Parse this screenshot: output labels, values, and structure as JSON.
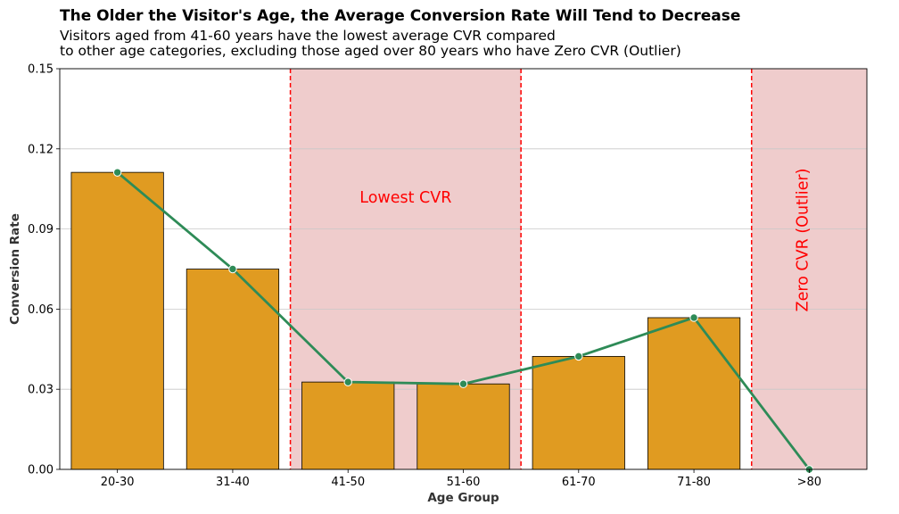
{
  "chart_data": {
    "type": "bar",
    "title": "The Older the Visitor's Age, the Average Conversion Rate Will Tend to Decrease",
    "subtitle_lines": [
      "Visitors aged from 41-60 years have the lowest average CVR compared",
      "to other age categories, excluding those aged over 80 years who have Zero CVR (Outlier)"
    ],
    "xlabel": "Age Group",
    "ylabel": "Conversion Rate",
    "categories": [
      "20-30",
      "31-40",
      "41-50",
      "51-60",
      "61-70",
      "71-80",
      ">80"
    ],
    "values": [
      0.1112,
      0.075,
      0.0327,
      0.032,
      0.0423,
      0.0568,
      0.0
    ],
    "line_values": [
      0.1112,
      0.075,
      0.0327,
      0.032,
      0.0423,
      0.0568,
      0.0
    ],
    "ylim": [
      0,
      0.15
    ],
    "yticks": [
      "0.00",
      "0.03",
      "0.06",
      "0.09",
      "0.12",
      "0.15"
    ],
    "grid": "horizontal",
    "highlights": [
      {
        "from_category": "41-50",
        "to_category": "51-60",
        "label": "Lowest CVR",
        "label_orientation": "horizontal"
      },
      {
        "from_category": ">80",
        "to_category": ">80",
        "label": "Zero CVR (Outlier)",
        "label_orientation": "vertical"
      }
    ],
    "colors": {
      "bar": "#e09b21",
      "bar_edge": "#000000",
      "line": "#2e8b57",
      "highlight_fill": "#efcccc",
      "highlight_edge": "#ff0000",
      "annotation": "#ff0000",
      "grid": "#c8c8c8"
    }
  }
}
